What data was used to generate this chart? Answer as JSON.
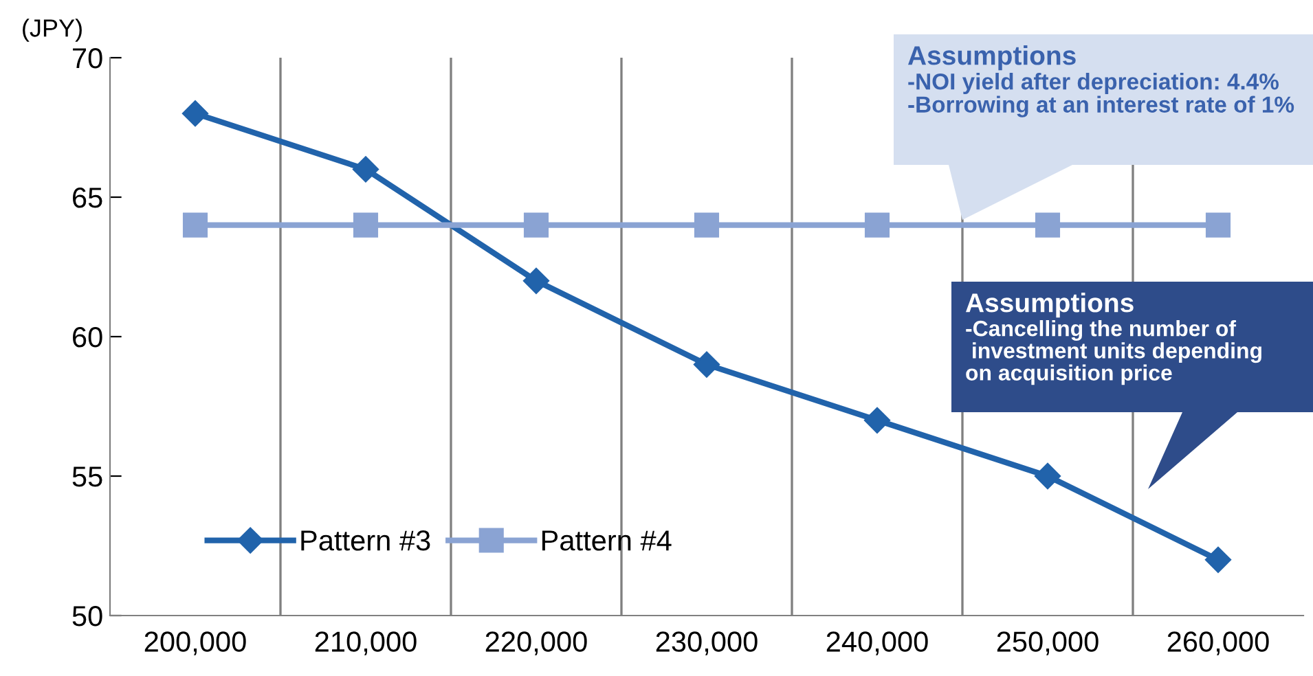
{
  "chart_data": {
    "type": "line",
    "ylabel": "(JPY)",
    "categories": [
      "200,000",
      "210,000",
      "220,000",
      "230,000",
      "240,000",
      "250,000",
      "260,000"
    ],
    "series": [
      {
        "name": "Pattern #3",
        "color": "#2163ab",
        "marker": "diamond",
        "values": [
          68,
          66,
          62,
          59,
          57,
          55,
          52
        ]
      },
      {
        "name": "Pattern #4",
        "color": "#8aa3d3",
        "marker": "square",
        "values": [
          64,
          64,
          64,
          64,
          64,
          64,
          64
        ]
      }
    ],
    "ylim": [
      50,
      70
    ],
    "yticks": [
      50,
      55,
      60,
      65,
      70
    ],
    "grid": "x",
    "legend": "bottom left",
    "line_style": "solid",
    "annotations": [
      "Assumptions\n-NOI yield after depreciation: 4.4%\n-Borrowing at an interest rate of 1%",
      "Assumptions\n-Cancelling the number of\n investment units depending\non acquisition price"
    ]
  }
}
